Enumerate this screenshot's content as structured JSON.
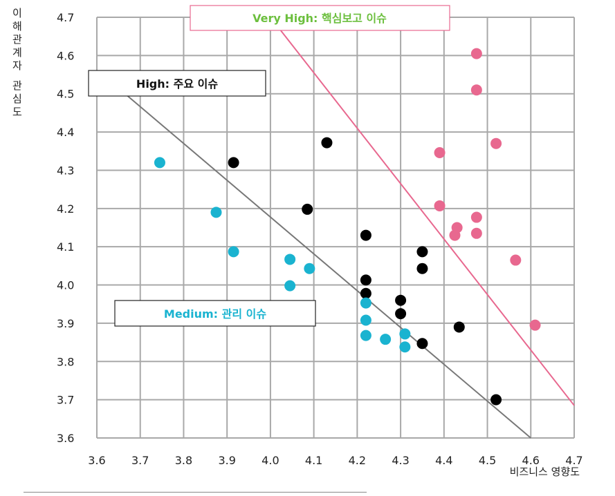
{
  "chart_data": {
    "type": "scatter",
    "title": "",
    "xlabel": "비즈니스 영향도",
    "ylabel": "이해관계자 관심도",
    "xlim": [
      3.6,
      4.7
    ],
    "ylim": [
      3.6,
      4.7
    ],
    "xticks": [
      "3.6",
      "3.7",
      "3.8",
      "3.9",
      "4.0",
      "4.1",
      "4.2",
      "4.3",
      "4.4",
      "4.5",
      "4.6",
      "4.7"
    ],
    "yticks": [
      "3.6",
      "3.7",
      "3.8",
      "3.9",
      "4.0",
      "4.1",
      "4.2",
      "4.3",
      "4.4",
      "4.5",
      "4.6",
      "4.7"
    ],
    "grid": true,
    "zones": [
      {
        "label": "Very High: 핵심보고 이슈",
        "color": "#e8688f",
        "line": [
          [
            4.0,
            4.7
          ],
          [
            4.7,
            3.685
          ]
        ]
      },
      {
        "label": "High: 주요 이슈",
        "color": "#777777",
        "line": [
          [
            3.665,
            4.5
          ],
          [
            4.6,
            3.6
          ]
        ]
      },
      {
        "label": "Medium: 관리 이슈",
        "color": "#1ab3d0"
      }
    ],
    "series": [
      {
        "color": "#e8688f",
        "points": [
          [
            4.475,
            4.605
          ],
          [
            4.475,
            4.51
          ],
          [
            4.52,
            4.37
          ],
          [
            4.39,
            4.346
          ],
          [
            4.39,
            4.207
          ],
          [
            4.475,
            4.177
          ],
          [
            4.43,
            4.15
          ],
          [
            4.425,
            4.13
          ],
          [
            4.475,
            4.135
          ],
          [
            4.565,
            4.065
          ],
          [
            4.61,
            3.895
          ]
        ]
      },
      {
        "color": "#000000",
        "points": [
          [
            3.915,
            4.32
          ],
          [
            4.13,
            4.372
          ],
          [
            4.085,
            4.198
          ],
          [
            4.22,
            4.13
          ],
          [
            4.35,
            4.087
          ],
          [
            4.35,
            4.043
          ],
          [
            4.22,
            4.013
          ],
          [
            4.22,
            3.978
          ],
          [
            4.3,
            3.96
          ],
          [
            4.3,
            3.925
          ],
          [
            4.435,
            3.89
          ],
          [
            4.35,
            3.847
          ],
          [
            4.52,
            3.7
          ]
        ]
      },
      {
        "color": "#1ab3d0",
        "points": [
          [
            3.745,
            4.32
          ],
          [
            3.875,
            4.19
          ],
          [
            3.915,
            4.087
          ],
          [
            4.045,
            4.067
          ],
          [
            4.09,
            4.043
          ],
          [
            4.045,
            3.998
          ],
          [
            4.22,
            3.953
          ],
          [
            4.22,
            3.908
          ],
          [
            4.22,
            3.868
          ],
          [
            4.265,
            3.858
          ],
          [
            4.31,
            3.872
          ],
          [
            4.31,
            3.838
          ]
        ]
      }
    ]
  }
}
